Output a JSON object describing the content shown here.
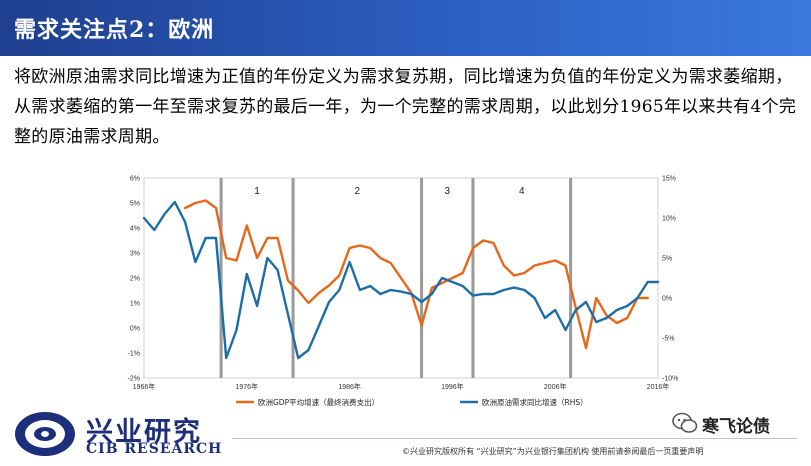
{
  "header": {
    "title": "需求关注点2：欧洲"
  },
  "body": {
    "text": "将欧洲原油需求同比增速为正值的年份定义为需求复苏期，同比增速为负值的年份定义为需求萎缩期，从需求萎缩的第一年至需求复苏的最后一年，为一个完整的需求周期，以此划分1965年以来共有4个完整的原油需求周期。"
  },
  "footer": {
    "disclaimer": "©兴业研究版权所有   “兴业研究”为兴业银行集团机构   使用前请参阅最后一页重要声明",
    "logo_cn": "兴业研究",
    "logo_en": "CIB RESEARCH",
    "wechat": "寒飞论债"
  },
  "colors": {
    "header_bg": "#2a59b8",
    "gdp_line": "#e8671b",
    "oil_line": "#1d6ea8"
  },
  "chart_data": {
    "type": "line",
    "x_ticks": [
      "1966年",
      "1976年",
      "1986年",
      "1996年",
      "2006年",
      "2016年"
    ],
    "xlim": [
      1966,
      2016
    ],
    "y_left": {
      "lim": [
        -2,
        6
      ],
      "ticks": [
        "-2%",
        "-1%",
        "0%",
        "1%",
        "2%",
        "3%",
        "4%",
        "5%",
        "6%"
      ]
    },
    "y_right": {
      "lim": [
        -10,
        15
      ],
      "ticks": [
        "-10%",
        "-5%",
        "0%",
        "5%",
        "10%",
        "15%"
      ]
    },
    "cycles": [
      {
        "label": "1",
        "start": 1973.5,
        "end": 1980.5
      },
      {
        "label": "2",
        "start": 1980.5,
        "end": 1993
      },
      {
        "label": "3",
        "start": 1993,
        "end": 1998
      },
      {
        "label": "4",
        "start": 1998,
        "end": 2007.5
      }
    ],
    "series": [
      {
        "name": "欧洲GDP平均增速（最终消费支出）",
        "axis": "left",
        "x": [
          1970,
          1971,
          1972,
          1973,
          1974,
          1975,
          1976,
          1977,
          1978,
          1979,
          1980,
          1981,
          1982,
          1983,
          1984,
          1985,
          1986,
          1987,
          1988,
          1989,
          1990,
          1991,
          1992,
          1993,
          1994,
          1995,
          1996,
          1997,
          1998,
          1999,
          2000,
          2001,
          2002,
          2003,
          2004,
          2005,
          2006,
          2007,
          2008,
          2009,
          2010,
          2011,
          2012,
          2013,
          2014,
          2015
        ],
        "y": [
          4.8,
          5.0,
          5.1,
          4.8,
          2.8,
          2.7,
          4.1,
          2.8,
          3.6,
          3.6,
          1.9,
          1.5,
          1.0,
          1.4,
          1.7,
          2.1,
          3.2,
          3.3,
          3.2,
          2.8,
          2.6,
          2.0,
          1.4,
          0.1,
          1.6,
          1.8,
          2.0,
          2.2,
          3.2,
          3.5,
          3.4,
          2.5,
          2.1,
          2.2,
          2.5,
          2.6,
          2.7,
          2.5,
          0.8,
          -0.8,
          1.2,
          0.5,
          0.2,
          0.4,
          1.2,
          1.2
        ]
      },
      {
        "name": "欧洲原油需求同比增速（RHS）",
        "axis": "right",
        "x": [
          1966,
          1967,
          1968,
          1969,
          1970,
          1971,
          1972,
          1973,
          1974,
          1975,
          1976,
          1977,
          1978,
          1979,
          1980,
          1981,
          1982,
          1983,
          1984,
          1985,
          1986,
          1987,
          1988,
          1989,
          1990,
          1991,
          1992,
          1993,
          1994,
          1995,
          1996,
          1997,
          1998,
          1999,
          2000,
          2001,
          2002,
          2003,
          2004,
          2005,
          2006,
          2007,
          2008,
          2009,
          2010,
          2011,
          2012,
          2013,
          2014,
          2015,
          2016
        ],
        "y": [
          10,
          8.5,
          10.5,
          12,
          9.5,
          4.5,
          7.5,
          7.5,
          -7.5,
          -4,
          3,
          -1,
          5,
          3.5,
          -2,
          -7.5,
          -6.5,
          -3.5,
          -0.5,
          1,
          4.5,
          1,
          1.5,
          0.5,
          1,
          0.8,
          0.5,
          -0.5,
          0.5,
          2.5,
          2,
          1.5,
          0.3,
          0.5,
          0.5,
          1,
          1.3,
          1,
          0,
          -2.5,
          -1.5,
          -4,
          -1.5,
          -0.5,
          -3,
          -2.5,
          -1.5,
          -1,
          0,
          2,
          2
        ]
      }
    ]
  }
}
